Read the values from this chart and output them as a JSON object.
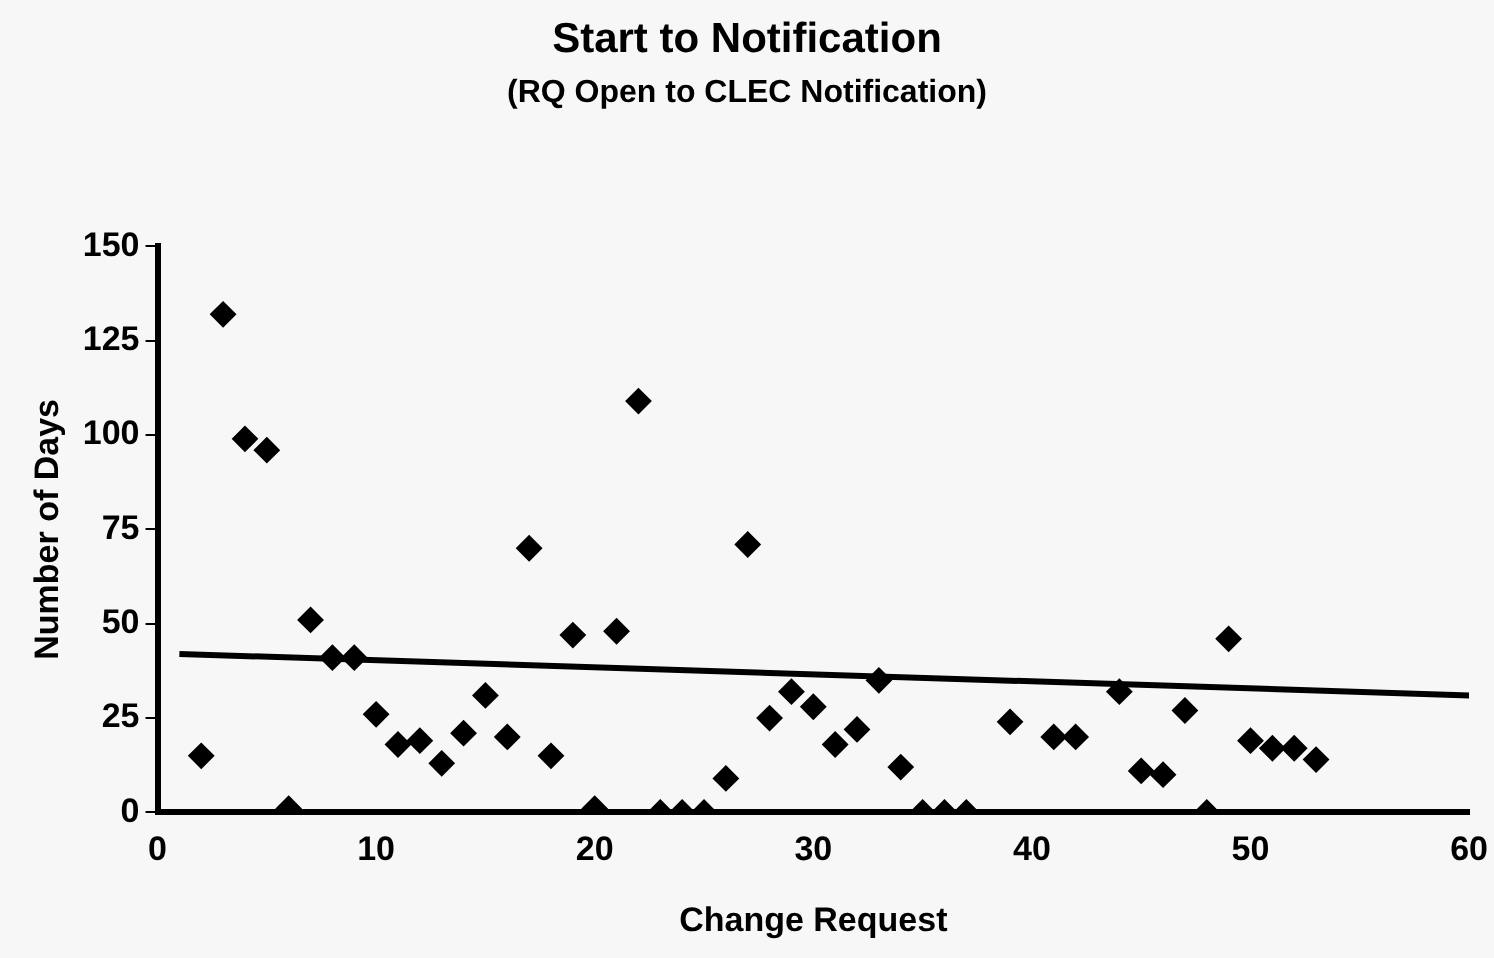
{
  "chart_data": {
    "type": "scatter",
    "title": "Start to Notification",
    "subtitle": "(RQ Open to CLEC Notification)",
    "xlabel": "Change Request",
    "ylabel": "Number of Days",
    "xlim": [
      0,
      60
    ],
    "xticks": [
      0,
      10,
      20,
      30,
      40,
      50,
      60
    ],
    "ylim": [
      0,
      150
    ],
    "yticks": [
      0,
      25,
      50,
      75,
      100,
      125,
      150
    ],
    "grid": false,
    "legend": false,
    "marker": "diamond",
    "series": [
      {
        "color": "#000000",
        "x": [
          2,
          3,
          4,
          5,
          6,
          7,
          8,
          9,
          10,
          11,
          12,
          13,
          14,
          15,
          16,
          17,
          18,
          19,
          20,
          21,
          22,
          23,
          24,
          25,
          26,
          27,
          28,
          29,
          30,
          31,
          32,
          33,
          34,
          35,
          36,
          37,
          39,
          41,
          42,
          44,
          45,
          46,
          47,
          48,
          49,
          50,
          51,
          52,
          53
        ],
        "values": [
          15,
          132,
          99,
          96,
          1,
          51,
          41,
          41,
          26,
          18,
          19,
          13,
          21,
          31,
          20,
          70,
          15,
          47,
          1,
          48,
          109,
          0,
          0,
          0,
          9,
          71,
          25,
          32,
          28,
          18,
          22,
          35,
          12,
          0,
          0,
          0,
          24,
          20,
          20,
          32,
          11,
          10,
          27,
          0,
          46,
          19,
          17,
          17,
          14
        ]
      },
      {
        "type": "line",
        "color": "#000000",
        "marker": "none",
        "x": [
          1,
          60
        ],
        "values": [
          42,
          31
        ]
      }
    ]
  }
}
